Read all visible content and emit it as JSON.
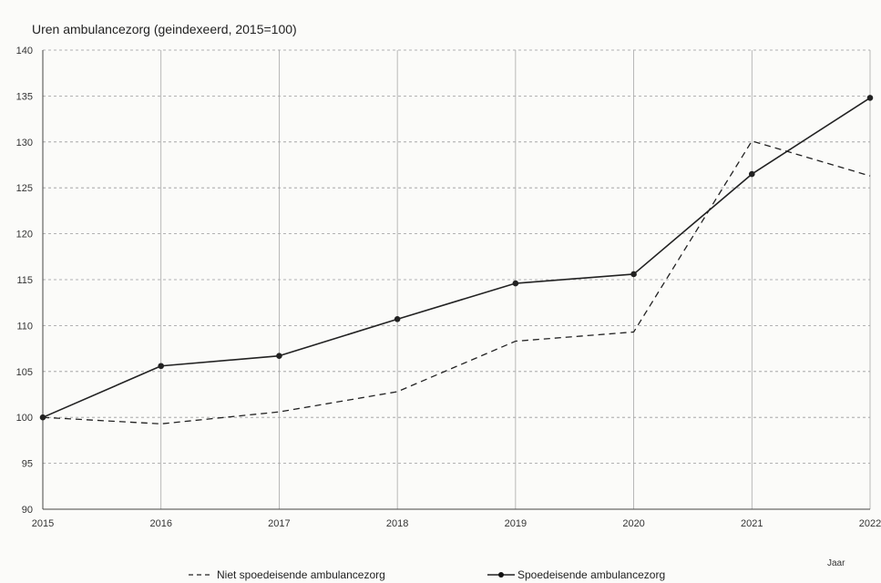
{
  "chart_data": {
    "type": "line",
    "title": "Uren ambulancezorg (geindexeerd, 2015=100)",
    "x_unit_label": "Jaar",
    "categories": [
      "2015",
      "2016",
      "2017",
      "2018",
      "2019",
      "2020",
      "2021",
      "2022"
    ],
    "ylim": [
      90,
      140
    ],
    "y_ticks": [
      90,
      95,
      100,
      105,
      110,
      115,
      120,
      125,
      130,
      135,
      140
    ],
    "grid": true,
    "legend_position": "bottom",
    "series": [
      {
        "name": "Niet spoedeisende ambulancezorg",
        "style": "dashed",
        "markers": false,
        "color": "#222222",
        "values": [
          100,
          99.3,
          100.6,
          102.8,
          108.3,
          109.3,
          130.1,
          126.3
        ]
      },
      {
        "name": "Spoedeisende ambulancezorg",
        "style": "solid",
        "markers": true,
        "color": "#222222",
        "values": [
          100,
          105.6,
          106.7,
          110.7,
          114.6,
          115.6,
          126.5,
          134.8
        ]
      }
    ]
  }
}
